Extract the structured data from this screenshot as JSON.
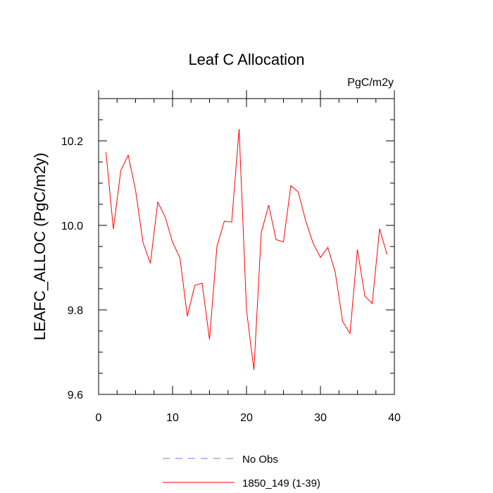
{
  "chart_data": {
    "type": "line",
    "title": "Leaf C Allocation",
    "units_label": "PgC/m2y",
    "ylabel": "LEAFC_ALLOC  (PgC/m2y)",
    "xlabel": "",
    "xlim": [
      0,
      40
    ],
    "ylim": [
      9.6,
      10.3
    ],
    "x_ticks": [
      0,
      10,
      20,
      30,
      40
    ],
    "x_minor_step": 2.5,
    "y_ticks": [
      9.6,
      9.8,
      10.0,
      10.2
    ],
    "y_tick_labels": [
      "9.6",
      "9.8",
      "10.0",
      "10.2"
    ],
    "y_minor_step": 0.05,
    "grid": false,
    "legend_placement": "bottom",
    "series": [
      {
        "name": "No Obs",
        "color": "#7777dd",
        "dashed": true,
        "x": [],
        "values": []
      },
      {
        "name": "1850_149 (1-39)",
        "color": "#ff0000",
        "dashed": false,
        "x": [
          1,
          2,
          3,
          4,
          5,
          6,
          7,
          8,
          9,
          10,
          11,
          12,
          13,
          14,
          15,
          16,
          17,
          18,
          19,
          20,
          21,
          22,
          23,
          24,
          25,
          26,
          27,
          28,
          29,
          30,
          31,
          32,
          33,
          34,
          35,
          36,
          37,
          38,
          39
        ],
        "values": [
          10.173,
          9.991,
          10.13,
          10.166,
          10.083,
          9.96,
          9.91,
          10.055,
          10.02,
          9.96,
          9.923,
          9.785,
          9.858,
          9.863,
          9.73,
          9.95,
          10.01,
          10.008,
          10.228,
          9.8,
          9.658,
          9.983,
          10.048,
          9.966,
          9.961,
          10.094,
          10.079,
          10.011,
          9.958,
          9.924,
          9.948,
          9.889,
          9.773,
          9.744,
          9.943,
          9.833,
          9.815,
          9.992,
          9.931
        ]
      }
    ]
  }
}
